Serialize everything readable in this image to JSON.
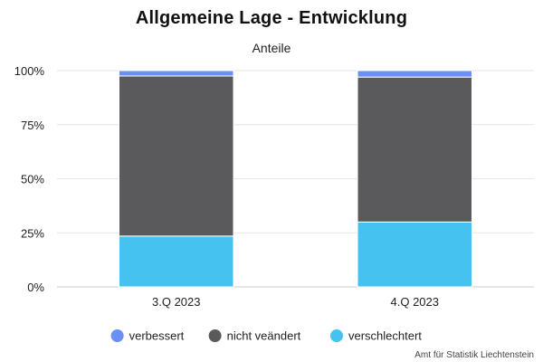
{
  "chart_data": {
    "type": "bar",
    "stacked": true,
    "title": "Allgemeine Lage - Entwicklung",
    "subtitle": "Anteile",
    "categories": [
      "3.Q 2023",
      "4.Q 2023"
    ],
    "series": [
      {
        "name": "verschlechtert",
        "color": "#46c2f0",
        "values": [
          23.5,
          30.0
        ]
      },
      {
        "name": "nicht veändert",
        "color": "#5a5a5c",
        "values": [
          74.0,
          67.0
        ]
      },
      {
        "name": "verbessert",
        "color": "#6a8ff5",
        "values": [
          2.5,
          3.0
        ]
      }
    ],
    "legend_order": [
      "verbessert",
      "nicht veändert",
      "verschlechtert"
    ],
    "ylim": [
      0,
      100
    ],
    "yticks": [
      "0%",
      "25%",
      "50%",
      "75%",
      "100%"
    ],
    "ytick_values": [
      0,
      25,
      50,
      75,
      100
    ],
    "grid": true,
    "legend_position": "bottom"
  },
  "credit": "Amt für Statistik Liechtenstein"
}
